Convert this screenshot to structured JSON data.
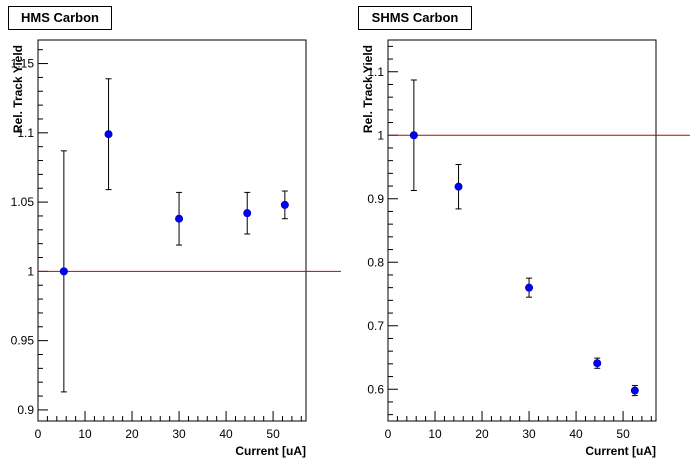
{
  "chart_data": [
    {
      "type": "scatter",
      "title": "HMS Carbon",
      "xlabel": "Current [uA]",
      "ylabel": "Rel. Track Yield",
      "xlim": [
        0,
        57
      ],
      "ylim": [
        0.892,
        1.167
      ],
      "xticks": [
        0,
        10,
        20,
        30,
        40,
        50
      ],
      "yticks": [
        0.9,
        0.95,
        1,
        1.05,
        1.1,
        1.15
      ],
      "ytick_labels": [
        "0.9",
        "0.95",
        "1",
        "1.05",
        "1.1",
        "1.15"
      ],
      "reference_line": 1,
      "points": [
        {
          "x": 5.5,
          "y": 1.0,
          "err": 0.087
        },
        {
          "x": 15,
          "y": 1.099,
          "err": 0.04
        },
        {
          "x": 30,
          "y": 1.038,
          "err": 0.019
        },
        {
          "x": 44.5,
          "y": 1.042,
          "err": 0.015
        },
        {
          "x": 52.5,
          "y": 1.048,
          "err": 0.01
        }
      ],
      "colors": {
        "marker": "#0000ff",
        "reference": "#cc0000"
      }
    },
    {
      "type": "scatter",
      "title": "SHMS Carbon",
      "xlabel": "Current [uA]",
      "ylabel": "Rel. Track Yield",
      "xlim": [
        0,
        57
      ],
      "ylim": [
        0.55,
        1.15
      ],
      "xticks": [
        0,
        10,
        20,
        30,
        40,
        50
      ],
      "yticks": [
        0.6,
        0.7,
        0.8,
        0.9,
        1,
        1.1
      ],
      "ytick_labels": [
        "0.6",
        "0.7",
        "0.8",
        "0.9",
        "1",
        "1.1"
      ],
      "reference_line": 1,
      "points": [
        {
          "x": 5.5,
          "y": 1.0,
          "err": 0.087
        },
        {
          "x": 15,
          "y": 0.919,
          "err": 0.035
        },
        {
          "x": 30,
          "y": 0.76,
          "err": 0.015
        },
        {
          "x": 44.5,
          "y": 0.641,
          "err": 0.008
        },
        {
          "x": 52.5,
          "y": 0.598,
          "err": 0.008
        }
      ],
      "colors": {
        "marker": "#0000ff",
        "reference": "#cc0000"
      }
    }
  ]
}
